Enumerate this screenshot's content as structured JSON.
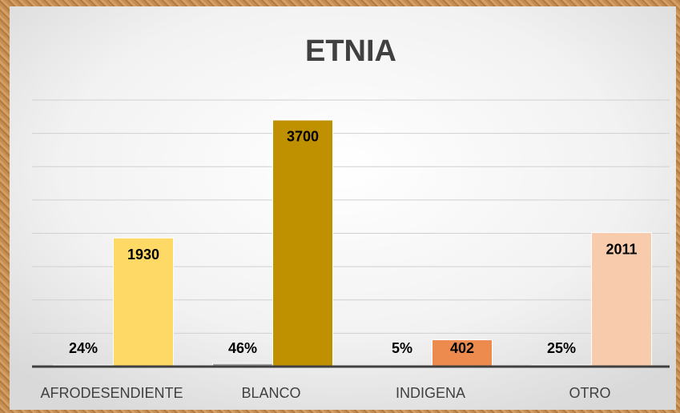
{
  "chart_data": {
    "type": "bar",
    "title": "ETNIA",
    "categories": [
      "AFRODESENDIENTE",
      "BLANCO",
      "INDIGENA",
      "OTRO"
    ],
    "series": [
      {
        "values": [
          24,
          46,
          5,
          25
        ],
        "value_labels": [
          "24%",
          "46%",
          "5%",
          "25%"
        ],
        "color": "#a5a5a5"
      },
      {
        "values": [
          1930,
          3700,
          402,
          2011
        ],
        "colors": [
          "#ffd966",
          "#bf9000",
          "#ed8b4e",
          "#f8cbad"
        ]
      }
    ],
    "ylim": [
      0,
      4000
    ],
    "yticks": [
      0,
      500,
      1000,
      1500,
      2000,
      2500,
      3000,
      3500,
      4000
    ],
    "grid": true
  }
}
